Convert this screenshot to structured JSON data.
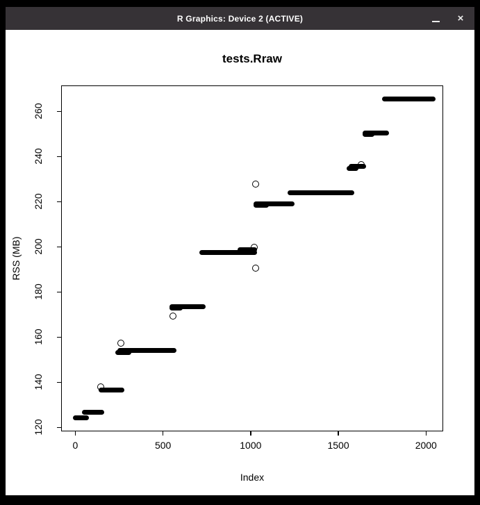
{
  "window": {
    "title": "R Graphics: Device 2 (ACTIVE)",
    "controls": {
      "minimize_glyph": "_",
      "close_glyph": "×"
    },
    "titlebar_color": "#363236",
    "border_color": "#000000",
    "canvas_color": "#ffffff"
  },
  "chart_data": {
    "type": "scatter",
    "title": "tests.Rraw",
    "xlabel": "Index",
    "ylabel": "RSS (MB)",
    "point_style": "open-circle",
    "point_color": "#000000",
    "grid": false,
    "legend": "none",
    "xlim": [
      -77,
      2094
    ],
    "ylim": [
      118.6,
      271.2
    ],
    "x_ticks": [
      0,
      500,
      1000,
      1500,
      2000
    ],
    "y_ticks": [
      120,
      140,
      160,
      180,
      200,
      220,
      240,
      260
    ],
    "segments": [
      {
        "x_start": 1,
        "x_end": 62,
        "rss_mb": 124.4
      },
      {
        "x_start": 51,
        "x_end": 150,
        "rss_mb": 126.9
      },
      {
        "x_start": 148,
        "x_end": 266,
        "rss_mb": 136.7
      },
      {
        "x_start": 240,
        "x_end": 306,
        "rss_mb": 153.2
      },
      {
        "x_start": 254,
        "x_end": 562,
        "rss_mb": 154.0
      },
      {
        "x_start": 551,
        "x_end": 600,
        "rss_mb": 172.8
      },
      {
        "x_start": 551,
        "x_end": 728,
        "rss_mb": 173.6
      },
      {
        "x_start": 722,
        "x_end": 1024,
        "rss_mb": 197.6
      },
      {
        "x_start": 940,
        "x_end": 1024,
        "rss_mb": 198.6
      },
      {
        "x_start": 1032,
        "x_end": 1090,
        "rss_mb": 218.3
      },
      {
        "x_start": 1032,
        "x_end": 1236,
        "rss_mb": 218.9
      },
      {
        "x_start": 1224,
        "x_end": 1579,
        "rss_mb": 223.9
      },
      {
        "x_start": 1560,
        "x_end": 1602,
        "rss_mb": 234.6
      },
      {
        "x_start": 1572,
        "x_end": 1645,
        "rss_mb": 235.8
      },
      {
        "x_start": 1653,
        "x_end": 1690,
        "rss_mb": 249.7
      },
      {
        "x_start": 1653,
        "x_end": 1777,
        "rss_mb": 250.4
      },
      {
        "x_start": 1765,
        "x_end": 2041,
        "rss_mb": 265.5
      }
    ],
    "outliers": [
      {
        "x": 145,
        "rss_mb": 138.0
      },
      {
        "x": 263,
        "rss_mb": 157.2
      },
      {
        "x": 560,
        "rss_mb": 169.3
      },
      {
        "x": 1021,
        "rss_mb": 199.6
      },
      {
        "x": 1029,
        "rss_mb": 190.6
      },
      {
        "x": 1028,
        "rss_mb": 227.8
      },
      {
        "x": 1634,
        "rss_mb": 236.2
      }
    ]
  }
}
